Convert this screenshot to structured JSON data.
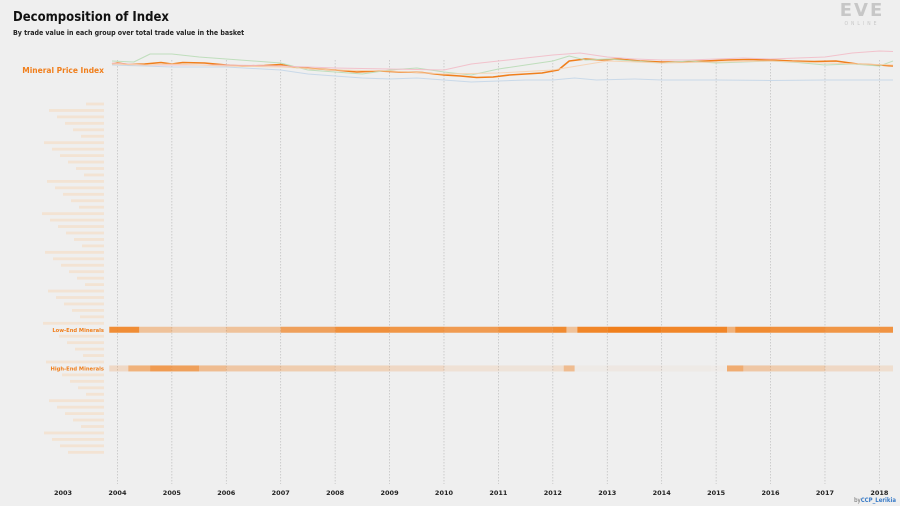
{
  "header": {
    "title": "Decomposition of Index",
    "subtitle": "By trade value in each group over total trade value in the basket"
  },
  "logo": {
    "mark": "EVE",
    "sub": "ONLINE"
  },
  "credit": {
    "prefix": "by",
    "handle": "CCP_Lerikia"
  },
  "colors": {
    "background": "#efefef",
    "index_line": "#f07f1c",
    "heat": "#f07f1c",
    "faint_label": "#f6d8bc",
    "series_pink": "#f2bcc8",
    "series_green": "#b9dcb6",
    "series_blue": "#c4d6e8",
    "series_peach": "#f6d2b0",
    "vgrid": "#bdbdbd"
  },
  "chart_data": {
    "type": "line",
    "title": "Decomposition of Index",
    "subtitle": "By trade value in each group over total trade value in the basket",
    "xlim": [
      2003.0,
      2018.25
    ],
    "xticks": [
      "2003",
      "2004",
      "2005",
      "2006",
      "2007",
      "2008",
      "2009",
      "2010",
      "2011",
      "2012",
      "2013",
      "2014",
      "2015",
      "2016",
      "2017",
      "2018"
    ],
    "grid": {
      "x": true,
      "y": false
    },
    "index_label": "Mineral Price Index",
    "ylim": [
      0,
      100
    ],
    "series": [
      {
        "role": "index",
        "color": "#f07f1c",
        "width": 1.6,
        "points": [
          [
            2003.9,
            52
          ],
          [
            2004.0,
            54
          ],
          [
            2004.2,
            51
          ],
          [
            2004.5,
            52
          ],
          [
            2004.8,
            55
          ],
          [
            2005.0,
            52
          ],
          [
            2005.2,
            55
          ],
          [
            2005.6,
            54
          ],
          [
            2006.0,
            50
          ],
          [
            2006.3,
            48
          ],
          [
            2006.7,
            49
          ],
          [
            2007.0,
            51
          ],
          [
            2007.3,
            45
          ],
          [
            2007.7,
            42
          ],
          [
            2008.0,
            40
          ],
          [
            2008.4,
            36
          ],
          [
            2008.8,
            38
          ],
          [
            2009.2,
            36
          ],
          [
            2009.6,
            35
          ],
          [
            2010.0,
            30
          ],
          [
            2010.3,
            28
          ],
          [
            2010.6,
            25
          ],
          [
            2010.9,
            26
          ],
          [
            2011.2,
            30
          ],
          [
            2011.5,
            32
          ],
          [
            2011.8,
            34
          ],
          [
            2012.1,
            40
          ],
          [
            2012.3,
            58
          ],
          [
            2012.6,
            62
          ],
          [
            2012.9,
            60
          ],
          [
            2013.2,
            62
          ],
          [
            2013.6,
            58
          ],
          [
            2014.0,
            56
          ],
          [
            2014.4,
            56
          ],
          [
            2014.8,
            58
          ],
          [
            2015.2,
            60
          ],
          [
            2015.6,
            61
          ],
          [
            2016.0,
            60
          ],
          [
            2016.4,
            58
          ],
          [
            2016.8,
            57
          ],
          [
            2017.2,
            58
          ],
          [
            2017.6,
            52
          ],
          [
            2018.0,
            50
          ],
          [
            2018.25,
            48
          ]
        ]
      },
      {
        "role": "component",
        "color": "#b9dcb6",
        "width": 1.0,
        "points": [
          [
            2003.9,
            58
          ],
          [
            2004.3,
            56
          ],
          [
            2004.6,
            72
          ],
          [
            2005.0,
            72
          ],
          [
            2005.5,
            66
          ],
          [
            2006.0,
            62
          ],
          [
            2006.5,
            58
          ],
          [
            2007.0,
            54
          ],
          [
            2007.5,
            40
          ],
          [
            2008.0,
            36
          ],
          [
            2008.5,
            32
          ],
          [
            2009.0,
            40
          ],
          [
            2009.5,
            44
          ],
          [
            2010.0,
            36
          ],
          [
            2010.5,
            30
          ],
          [
            2011.0,
            42
          ],
          [
            2011.5,
            50
          ],
          [
            2012.0,
            58
          ],
          [
            2012.3,
            68
          ],
          [
            2012.6,
            60
          ],
          [
            2013.0,
            62
          ],
          [
            2013.5,
            58
          ],
          [
            2014.0,
            54
          ],
          [
            2014.5,
            58
          ],
          [
            2015.0,
            54
          ],
          [
            2015.5,
            56
          ],
          [
            2016.0,
            58
          ],
          [
            2016.5,
            55
          ],
          [
            2017.0,
            50
          ],
          [
            2017.5,
            52
          ],
          [
            2018.0,
            48
          ],
          [
            2018.25,
            58
          ]
        ]
      },
      {
        "role": "component",
        "color": "#f2bcc8",
        "width": 1.0,
        "points": [
          [
            2003.9,
            54
          ],
          [
            2004.5,
            50
          ],
          [
            2005.0,
            50
          ],
          [
            2006.0,
            50
          ],
          [
            2007.0,
            48
          ],
          [
            2008.0,
            44
          ],
          [
            2009.0,
            42
          ],
          [
            2010.0,
            40
          ],
          [
            2010.5,
            52
          ],
          [
            2011.0,
            58
          ],
          [
            2011.5,
            64
          ],
          [
            2012.0,
            70
          ],
          [
            2012.5,
            74
          ],
          [
            2013.0,
            66
          ],
          [
            2013.5,
            62
          ],
          [
            2014.0,
            60
          ],
          [
            2014.5,
            60
          ],
          [
            2015.0,
            62
          ],
          [
            2015.5,
            64
          ],
          [
            2016.0,
            62
          ],
          [
            2016.5,
            64
          ],
          [
            2017.0,
            66
          ],
          [
            2017.5,
            74
          ],
          [
            2018.0,
            78
          ],
          [
            2018.25,
            77
          ]
        ]
      },
      {
        "role": "component",
        "color": "#c4d6e8",
        "width": 1.0,
        "points": [
          [
            2003.9,
            50
          ],
          [
            2004.5,
            48
          ],
          [
            2005.0,
            46
          ],
          [
            2006.0,
            46
          ],
          [
            2007.0,
            40
          ],
          [
            2007.5,
            32
          ],
          [
            2008.0,
            28
          ],
          [
            2008.5,
            24
          ],
          [
            2009.0,
            22
          ],
          [
            2009.5,
            24
          ],
          [
            2010.0,
            20
          ],
          [
            2010.5,
            16
          ],
          [
            2011.0,
            18
          ],
          [
            2011.5,
            20
          ],
          [
            2012.0,
            20
          ],
          [
            2012.4,
            24
          ],
          [
            2012.8,
            20
          ],
          [
            2013.5,
            22
          ],
          [
            2014.0,
            20
          ],
          [
            2015.0,
            20
          ],
          [
            2016.0,
            19
          ],
          [
            2017.0,
            20
          ],
          [
            2018.25,
            20
          ]
        ]
      },
      {
        "role": "component",
        "color": "#f6d2b0",
        "width": 1.0,
        "points": [
          [
            2003.9,
            52
          ],
          [
            2004.5,
            50
          ],
          [
            2005.0,
            52
          ],
          [
            2006.0,
            48
          ],
          [
            2007.0,
            46
          ],
          [
            2008.0,
            40
          ],
          [
            2009.0,
            38
          ],
          [
            2010.0,
            32
          ],
          [
            2011.0,
            34
          ],
          [
            2012.0,
            40
          ],
          [
            2013.0,
            58
          ],
          [
            2014.0,
            54
          ],
          [
            2015.0,
            56
          ],
          [
            2016.0,
            58
          ],
          [
            2017.0,
            54
          ],
          [
            2018.25,
            50
          ]
        ]
      }
    ],
    "heatmap": {
      "type": "heatmap",
      "rows": [
        {
          "label": "Low-End Minerals",
          "highlight": true,
          "segments": [
            [
              2003.85,
              0.88
            ],
            [
              2004.4,
              0.4
            ],
            [
              2005.0,
              0.3
            ],
            [
              2006.0,
              0.4
            ],
            [
              2007.0,
              0.7
            ],
            [
              2008.0,
              0.85
            ],
            [
              2009.0,
              0.8
            ],
            [
              2010.0,
              0.75
            ],
            [
              2011.0,
              0.85
            ],
            [
              2012.0,
              0.9
            ],
            [
              2012.25,
              0.4
            ],
            [
              2012.45,
              0.95
            ],
            [
              2013.0,
              1.0
            ],
            [
              2014.0,
              0.95
            ],
            [
              2015.2,
              0.55
            ],
            [
              2015.35,
              0.9
            ],
            [
              2016.0,
              0.85
            ],
            [
              2017.0,
              0.8
            ],
            [
              2018.0,
              0.82
            ]
          ]
        },
        {
          "label": "High-End Minerals",
          "highlight": true,
          "segments": [
            [
              2003.85,
              0.2
            ],
            [
              2004.2,
              0.55
            ],
            [
              2004.6,
              0.75
            ],
            [
              2005.0,
              0.7
            ],
            [
              2005.5,
              0.45
            ],
            [
              2006.0,
              0.35
            ],
            [
              2007.0,
              0.3
            ],
            [
              2008.0,
              0.25
            ],
            [
              2009.0,
              0.2
            ],
            [
              2010.0,
              0.12
            ],
            [
              2011.0,
              0.1
            ],
            [
              2012.0,
              0.15
            ],
            [
              2012.2,
              0.45
            ],
            [
              2012.4,
              0.04
            ],
            [
              2013.0,
              0.06
            ],
            [
              2014.0,
              0.04
            ],
            [
              2014.9,
              0.03
            ],
            [
              2015.2,
              0.6
            ],
            [
              2015.5,
              0.35
            ],
            [
              2016.0,
              0.3
            ],
            [
              2017.0,
              0.2
            ],
            [
              2018.0,
              0.15
            ]
          ]
        }
      ],
      "faint_row_count": 55
    }
  }
}
